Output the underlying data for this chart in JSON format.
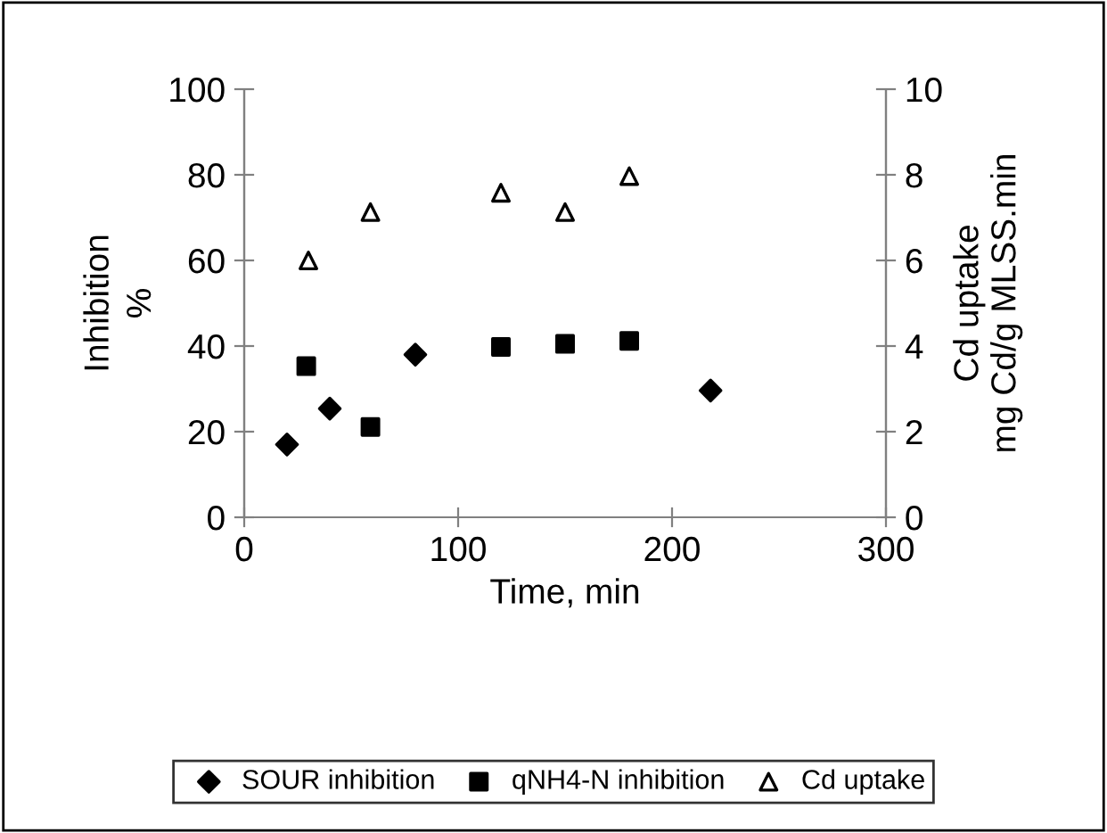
{
  "chart_data": {
    "type": "scatter",
    "xlabel": "Time, min",
    "ylabel": "Inhibition\n%",
    "y2label": "Cd uptake\nmg Cd/g MLSS.min",
    "xlim": [
      0,
      300
    ],
    "xticks": [
      0,
      100,
      200,
      300
    ],
    "ylim": [
      0,
      100
    ],
    "yticks": [
      0,
      20,
      40,
      60,
      80,
      100
    ],
    "y2lim": [
      0,
      10
    ],
    "y2ticks": [
      0,
      2,
      4,
      6,
      8,
      10
    ],
    "grid": false,
    "legend": "bottom",
    "series": [
      {
        "name": "SOUR inhibition",
        "color": "#000000",
        "marker": "diamond",
        "x": [
          20,
          40,
          80,
          218
        ],
        "values": [
          17,
          25.4,
          38,
          29.6
        ]
      },
      {
        "name": "qNH4-N inhibition",
        "color": "#000000",
        "marker": "square",
        "x": [
          29,
          59,
          120,
          150,
          180
        ],
        "values": [
          35.3,
          21.1,
          39.8,
          40.5,
          41.2
        ]
      },
      {
        "name": "Cd uptake",
        "color": "#000000",
        "marker": "triangle",
        "axis": "y2",
        "x": [
          30,
          59,
          120,
          150,
          180
        ],
        "values": [
          6.0,
          7.13,
          7.58,
          7.13,
          7.97
        ]
      }
    ]
  }
}
